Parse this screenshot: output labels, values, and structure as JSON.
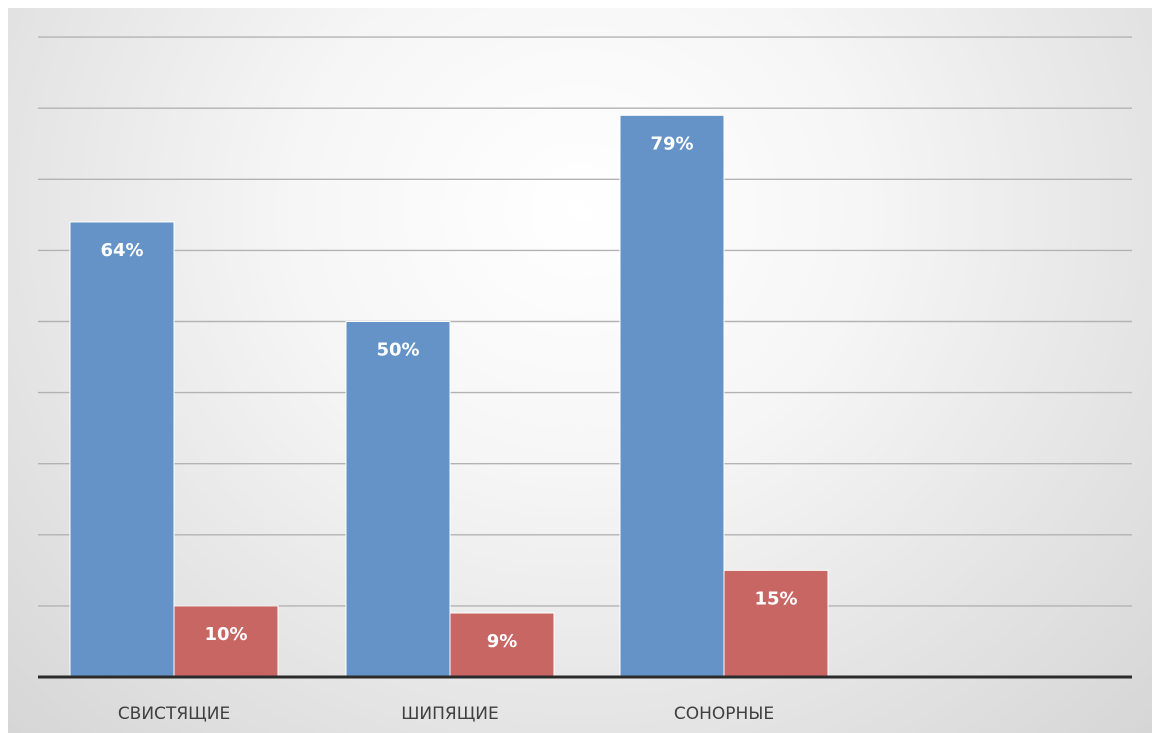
{
  "chart_data": {
    "type": "bar",
    "categories": [
      "СВИСТЯЩИЕ",
      "ШИПЯЩИЕ",
      "СОНОРНЫЕ"
    ],
    "series": [
      {
        "values": [
          64,
          50,
          79
        ],
        "labels": [
          "64%",
          "50%",
          "79%"
        ],
        "color": "#6593c7"
      },
      {
        "values": [
          10,
          9,
          15
        ],
        "labels": [
          "10%",
          "9%",
          "15%"
        ],
        "color": "#c86664"
      }
    ],
    "ylim": [
      0,
      90
    ],
    "grid": true,
    "legend": "none",
    "title": "",
    "xlabel": "",
    "ylabel": ""
  }
}
